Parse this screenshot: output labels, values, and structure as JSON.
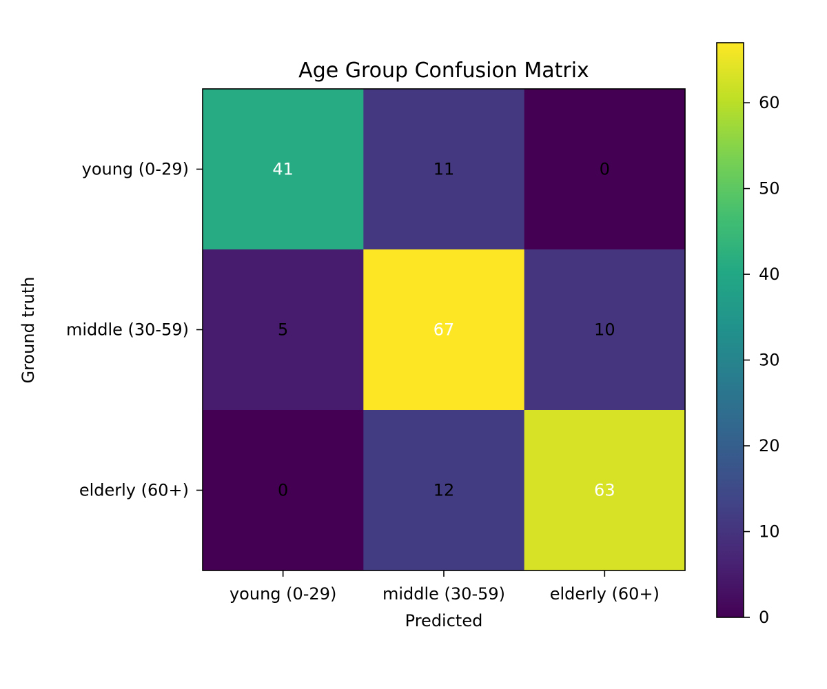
{
  "chart_data": {
    "type": "heatmap",
    "title": "Age Group Confusion Matrix",
    "xlabel": "Predicted",
    "ylabel": "Ground truth",
    "x_categories": [
      "young (0-29)",
      "middle (30-59)",
      "elderly (60+)"
    ],
    "y_categories": [
      "young (0-29)",
      "middle (30-59)",
      "elderly (60+)"
    ],
    "values": [
      [
        41,
        11,
        0
      ],
      [
        5,
        67,
        10
      ],
      [
        0,
        12,
        63
      ]
    ],
    "colormap": "viridis",
    "color_range": [
      0,
      67
    ],
    "colorbar": {
      "ticks": [
        0,
        10,
        20,
        30,
        40,
        50,
        60
      ],
      "labels": [
        "0",
        "10",
        "20",
        "30",
        "40",
        "50",
        "60"
      ]
    },
    "grid": false
  }
}
